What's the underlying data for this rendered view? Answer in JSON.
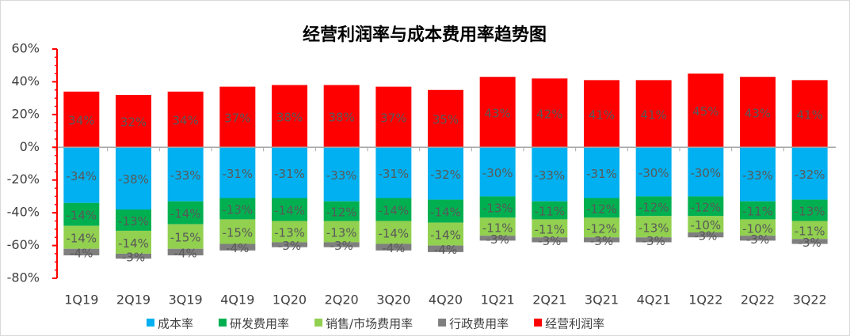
{
  "chart_data": {
    "type": "bar",
    "stacked": true,
    "title": "经营利润率与成本费用率趋势图",
    "categories": [
      "1Q19",
      "2Q19",
      "3Q19",
      "4Q19",
      "1Q20",
      "2Q20",
      "3Q20",
      "4Q20",
      "1Q21",
      "2Q21",
      "3Q21",
      "4Q21",
      "1Q22",
      "2Q22",
      "3Q22"
    ],
    "series": [
      {
        "name": "成本率",
        "color": "#00b0f0",
        "values": [
          -34,
          -38,
          -33,
          -31,
          -31,
          -33,
          -31,
          -32,
          -30,
          -33,
          -31,
          -30,
          -30,
          -33,
          -32
        ],
        "value_labels": [
          "-34%",
          "-38%",
          "-33%",
          "-31%",
          "-31%",
          "-33%",
          "-31%",
          "-32%",
          "-30%",
          "-33%",
          "-31%",
          "-30%",
          "-30%",
          "-33%",
          "-32%"
        ]
      },
      {
        "name": "研发费用率",
        "color": "#00b050",
        "values": [
          -14,
          -13,
          -14,
          -13,
          -14,
          -12,
          -14,
          -14,
          -13,
          -11,
          -12,
          -12,
          -12,
          -11,
          -13
        ],
        "value_labels": [
          "-14%",
          "-13%",
          "-14%",
          "-13%",
          "-14%",
          "-12%",
          "-14%",
          "-14%",
          "-13%",
          "-11%",
          "-12%",
          "-12%",
          "-12%",
          "-11%",
          "-13%"
        ]
      },
      {
        "name": "销售/市场费用率",
        "color": "#92d050",
        "values": [
          -14,
          -14,
          -15,
          -15,
          -13,
          -13,
          -14,
          -14,
          -11,
          -11,
          -12,
          -13,
          -10,
          -10,
          -11
        ],
        "value_labels": [
          "-14%",
          "-14%",
          "-15%",
          "-15%",
          "-13%",
          "-13%",
          "-14%",
          "-14%",
          "-11%",
          "-11%",
          "-12%",
          "-13%",
          "-10%",
          "-10%",
          "-11%"
        ]
      },
      {
        "name": "行政费用率",
        "color": "#7f7f7f",
        "values": [
          -4,
          -3,
          -4,
          -4,
          -3,
          -3,
          -4,
          -4,
          -3,
          -3,
          -3,
          -3,
          -3,
          -3,
          -3
        ],
        "value_labels": [
          "-4%",
          "-3%",
          "-4%",
          "-4%",
          "-3%",
          "-3%",
          "-4%",
          "-4%",
          "-3%",
          "-3%",
          "-3%",
          "-3%",
          "-3%",
          "-3%",
          "-3%"
        ]
      },
      {
        "name": "经营利润率",
        "color": "#ff0000",
        "values": [
          34,
          32,
          34,
          37,
          38,
          38,
          37,
          35,
          43,
          42,
          41,
          41,
          45,
          43,
          41
        ],
        "value_labels": [
          "34%",
          "32%",
          "34%",
          "37%",
          "38%",
          "38%",
          "37%",
          "35%",
          "43%",
          "42%",
          "41%",
          "41%",
          "45%",
          "43%",
          "41%"
        ]
      }
    ],
    "ylim": [
      -80,
      60
    ],
    "yticks": [
      {
        "value": -80,
        "label": "-80%"
      },
      {
        "value": -60,
        "label": "-60%"
      },
      {
        "value": -40,
        "label": "-40%"
      },
      {
        "value": -20,
        "label": "-20%"
      },
      {
        "value": 0,
        "label": "0%"
      },
      {
        "value": 20,
        "label": "20%"
      },
      {
        "value": 40,
        "label": "40%"
      },
      {
        "value": 60,
        "label": "60%"
      }
    ],
    "legend": "bottom"
  }
}
